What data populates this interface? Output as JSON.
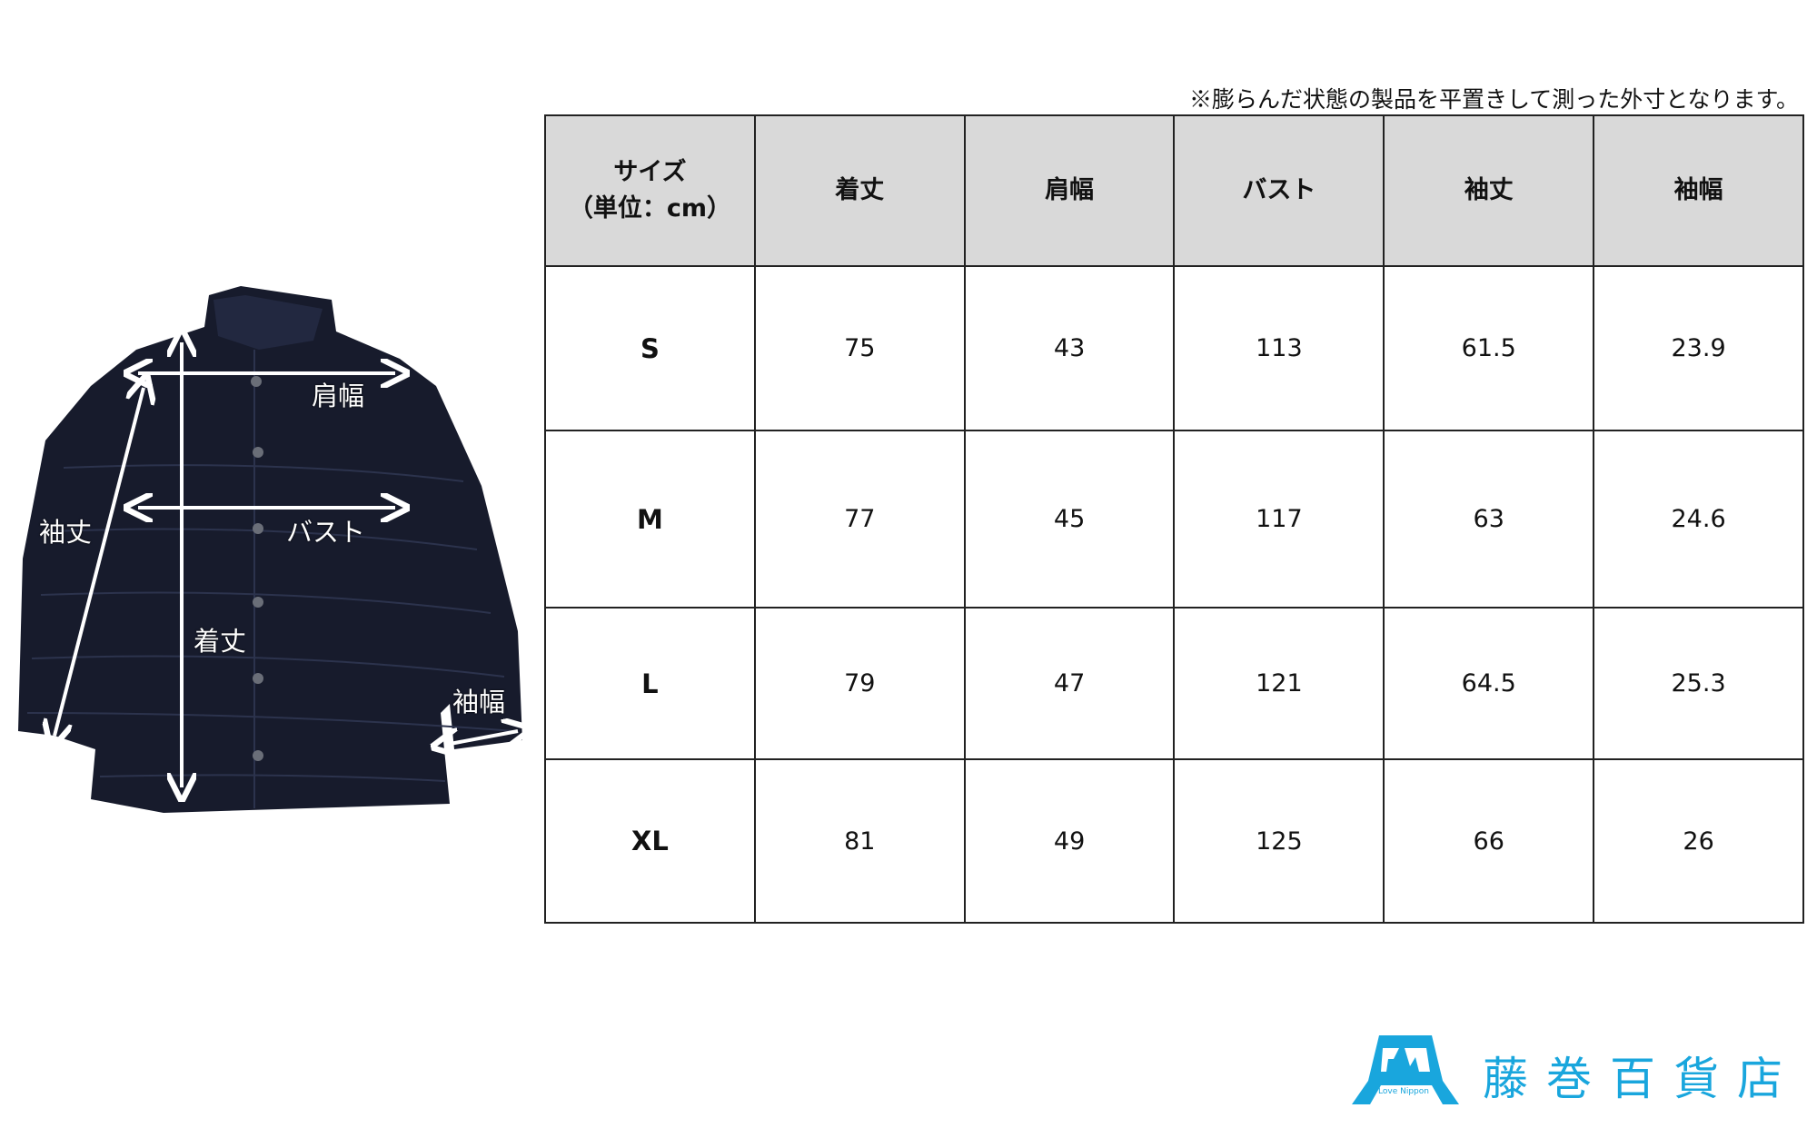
{
  "note": "※膨らんだ状態の製品を平置きして測った外寸となります。",
  "table": {
    "headers": [
      "サイズ",
      "（単位：cm）",
      "着丈",
      "肩幅",
      "バスト",
      "袖丈",
      "袖幅"
    ],
    "rows": [
      {
        "size": "S",
        "values": [
          "75",
          "43",
          "113",
          "61.5",
          "23.9"
        ]
      },
      {
        "size": "M",
        "values": [
          "77",
          "45",
          "117",
          "63",
          "24.6"
        ]
      },
      {
        "size": "L",
        "values": [
          "79",
          "47",
          "121",
          "64.5",
          "25.3"
        ]
      },
      {
        "size": "XL",
        "values": [
          "81",
          "49",
          "125",
          "66",
          "26"
        ]
      }
    ]
  },
  "diagram_labels": {
    "shoulder": "肩幅",
    "bust": "バスト",
    "sleeve_length": "袖丈",
    "length": "着丈",
    "sleeve_width": "袖幅"
  },
  "logo": {
    "tagline": "Love Nippon",
    "brand": "藤巻百貨店",
    "color": "#19a6dd"
  }
}
